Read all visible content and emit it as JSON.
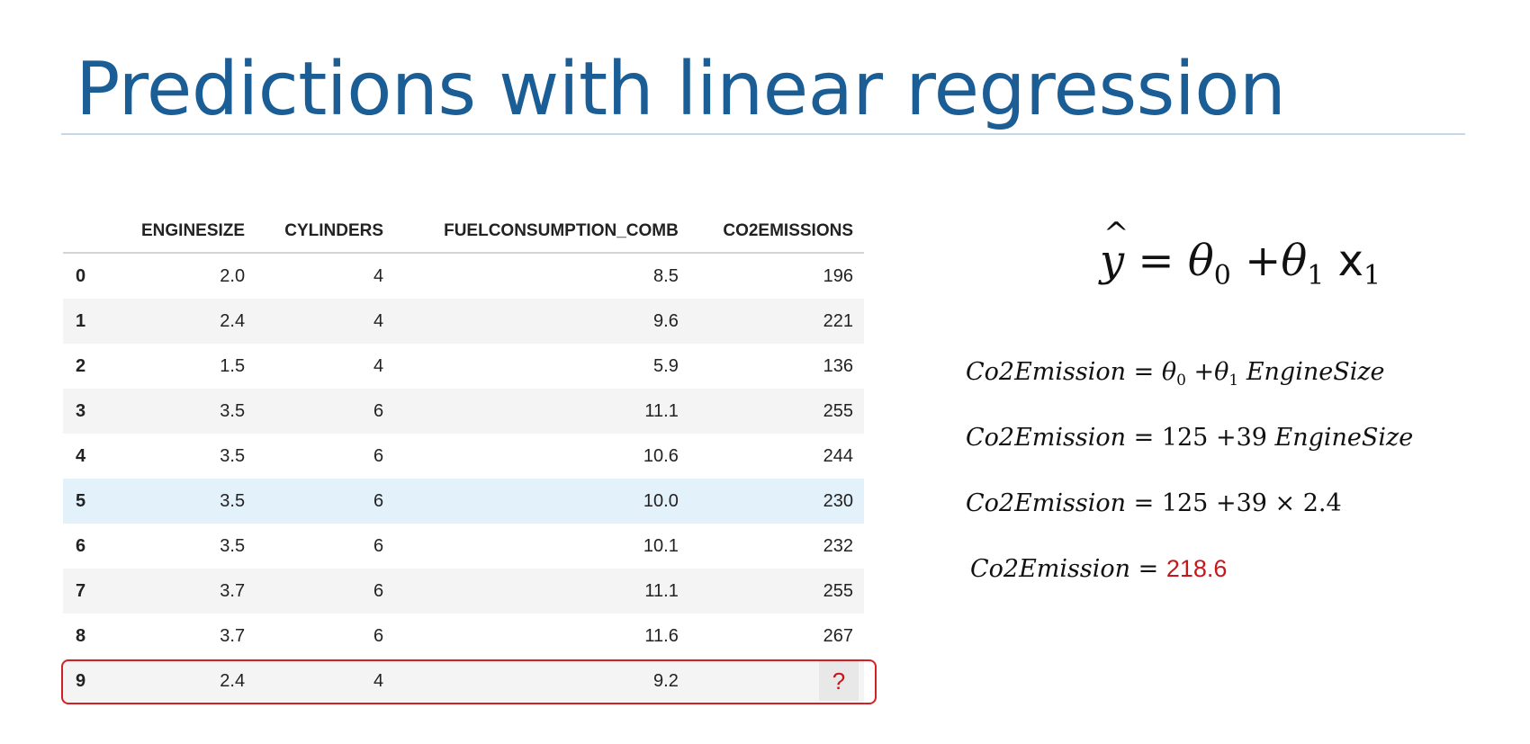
{
  "slide": {
    "title": "Predictions with linear regression"
  },
  "table": {
    "columns": [
      "",
      "ENGINESIZE",
      "CYLINDERS",
      "FUELCONSUMPTION_COMB",
      "CO2EMISSIONS"
    ],
    "rows": [
      [
        "0",
        "2.0",
        "4",
        "8.5",
        "196"
      ],
      [
        "1",
        "2.4",
        "4",
        "9.6",
        "221"
      ],
      [
        "2",
        "1.5",
        "4",
        "5.9",
        "136"
      ],
      [
        "3",
        "3.5",
        "6",
        "11.1",
        "255"
      ],
      [
        "4",
        "3.5",
        "6",
        "10.6",
        "244"
      ],
      [
        "5",
        "3.5",
        "6",
        "10.0",
        "230"
      ],
      [
        "6",
        "3.5",
        "6",
        "10.1",
        "232"
      ],
      [
        "7",
        "3.7",
        "6",
        "11.1",
        "255"
      ],
      [
        "8",
        "3.7",
        "6",
        "11.6",
        "267"
      ],
      [
        "9",
        "2.4",
        "4",
        "9.2",
        "?"
      ]
    ]
  },
  "equations": {
    "main": {
      "yhat": "y",
      "hat": "^",
      "equals": "=",
      "theta": "θ",
      "sub0": "0",
      "plus": "+",
      "sub1": "1",
      "x": "x",
      "xsub": "1"
    },
    "eq1": {
      "lhs": "Co2Emission",
      "op": " = ",
      "theta": "θ",
      "sub0": "0",
      "plus": " +",
      "sub1": "1",
      "var": " EngineSize"
    },
    "eq2": {
      "lhs": "Co2Emission",
      "op": " = ",
      "rhs": "125 +39 ",
      "var": "EngineSize"
    },
    "eq3": {
      "lhs": "Co2Emission",
      "op": " = ",
      "rhs": "125 +39  × 2.4"
    },
    "eq4": {
      "lhs": "Co2Emission",
      "op": " = ",
      "result": "218.6"
    }
  },
  "colors": {
    "title": "#1b5d95",
    "highlight_row": "#e2f1fa",
    "prediction_box": "#d32024",
    "result": "#c8161d"
  }
}
